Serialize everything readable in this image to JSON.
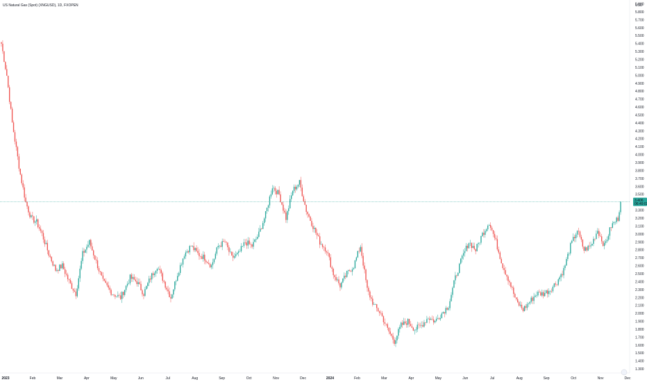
{
  "chart_data": {
    "type": "candlestick",
    "title": "US Natural Gas (Spot) (XNGUSD), 1D, FXOPEN",
    "currency_label": "USD",
    "ylim": [
      1.25,
      5.95
    ],
    "y_ticks": [
      "5.900",
      "5.800",
      "5.700",
      "5.600",
      "5.500",
      "5.400",
      "5.300",
      "5.200",
      "5.100",
      "5.000",
      "4.900",
      "4.800",
      "4.700",
      "4.600",
      "4.500",
      "4.400",
      "4.300",
      "4.200",
      "4.100",
      "4.000",
      "3.900",
      "3.800",
      "3.700",
      "3.600",
      "3.500",
      "3.300",
      "3.200",
      "3.100",
      "3.000",
      "2.900",
      "2.800",
      "2.700",
      "2.600",
      "2.500",
      "2.400",
      "2.300",
      "2.200",
      "2.100",
      "2.000",
      "1.900",
      "1.800",
      "1.700",
      "1.600",
      "1.500",
      "1.400",
      "1.300"
    ],
    "x_ticks": [
      "2023",
      "Feb",
      "Mar",
      "Apr",
      "May",
      "Jun",
      "Jul",
      "Aug",
      "Sep",
      "Oct",
      "Nov",
      "Dec",
      "2024",
      "Feb",
      "Mar",
      "Apr",
      "May",
      "Jun",
      "Jul",
      "Aug",
      "Sep",
      "Oct",
      "Nov",
      "Dec"
    ],
    "last_price": {
      "value": 3.406,
      "label": "3.406",
      "countdown": "06:49:02"
    },
    "up_color": "#26a69a",
    "down_color": "#ef5350",
    "price_line_color": "#26a69a",
    "grid": false,
    "anchors": [
      [
        0,
        5.4
      ],
      [
        4,
        5.0
      ],
      [
        8,
        4.4
      ],
      [
        14,
        3.75
      ],
      [
        18,
        3.4
      ],
      [
        22,
        3.2
      ],
      [
        26,
        3.15
      ],
      [
        30,
        3.0
      ],
      [
        35,
        2.75
      ],
      [
        40,
        2.55
      ],
      [
        45,
        2.6
      ],
      [
        50,
        2.4
      ],
      [
        55,
        2.25
      ],
      [
        60,
        2.75
      ],
      [
        65,
        2.9
      ],
      [
        70,
        2.65
      ],
      [
        75,
        2.4
      ],
      [
        82,
        2.25
      ],
      [
        88,
        2.2
      ],
      [
        95,
        2.45
      ],
      [
        100,
        2.4
      ],
      [
        105,
        2.25
      ],
      [
        110,
        2.45
      ],
      [
        115,
        2.6
      ],
      [
        120,
        2.4
      ],
      [
        125,
        2.2
      ],
      [
        130,
        2.5
      ],
      [
        135,
        2.75
      ],
      [
        140,
        2.85
      ],
      [
        145,
        2.75
      ],
      [
        150,
        2.7
      ],
      [
        155,
        2.6
      ],
      [
        160,
        2.85
      ],
      [
        165,
        2.9
      ],
      [
        170,
        2.7
      ],
      [
        175,
        2.75
      ],
      [
        180,
        2.9
      ],
      [
        185,
        2.85
      ],
      [
        190,
        3.0
      ],
      [
        195,
        3.25
      ],
      [
        200,
        3.6
      ],
      [
        205,
        3.5
      ],
      [
        210,
        3.2
      ],
      [
        215,
        3.55
      ],
      [
        220,
        3.65
      ],
      [
        225,
        3.3
      ],
      [
        230,
        3.1
      ],
      [
        235,
        2.9
      ],
      [
        240,
        2.8
      ],
      [
        245,
        2.5
      ],
      [
        250,
        2.35
      ],
      [
        255,
        2.5
      ],
      [
        260,
        2.6
      ],
      [
        265,
        2.85
      ],
      [
        270,
        2.3
      ],
      [
        275,
        2.1
      ],
      [
        280,
        2.0
      ],
      [
        285,
        1.8
      ],
      [
        290,
        1.65
      ],
      [
        295,
        1.85
      ],
      [
        300,
        1.9
      ],
      [
        305,
        1.8
      ],
      [
        310,
        1.85
      ],
      [
        315,
        1.95
      ],
      [
        320,
        1.9
      ],
      [
        325,
        2.0
      ],
      [
        330,
        2.1
      ],
      [
        335,
        2.45
      ],
      [
        340,
        2.7
      ],
      [
        345,
        2.9
      ],
      [
        350,
        2.8
      ],
      [
        355,
        3.0
      ],
      [
        360,
        3.15
      ],
      [
        365,
        2.9
      ],
      [
        370,
        2.6
      ],
      [
        375,
        2.4
      ],
      [
        380,
        2.15
      ],
      [
        385,
        2.05
      ],
      [
        390,
        2.15
      ],
      [
        395,
        2.25
      ],
      [
        400,
        2.25
      ],
      [
        405,
        2.3
      ],
      [
        410,
        2.4
      ],
      [
        415,
        2.55
      ],
      [
        420,
        2.85
      ],
      [
        425,
        3.05
      ],
      [
        430,
        2.8
      ],
      [
        435,
        2.85
      ],
      [
        440,
        3.05
      ],
      [
        445,
        2.85
      ],
      [
        450,
        3.1
      ],
      [
        455,
        3.2
      ],
      [
        457,
        3.41
      ]
    ]
  }
}
